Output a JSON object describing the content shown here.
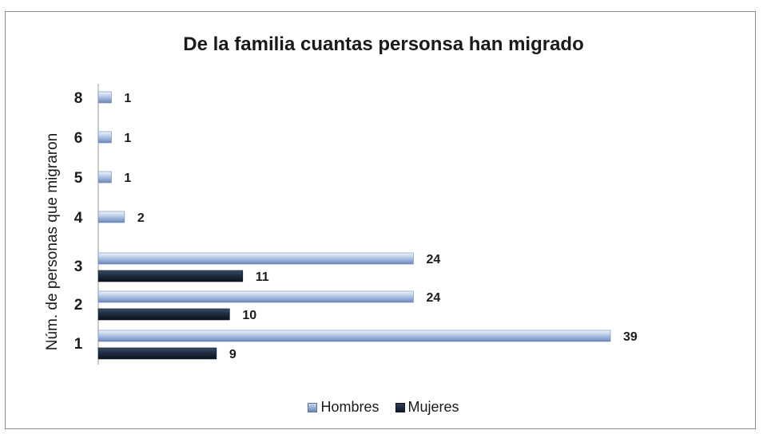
{
  "chart_data": {
    "type": "bar",
    "orientation": "horizontal",
    "title": "De la familia cuantas personsa han migrado",
    "xlabel": "",
    "ylabel": "Núm. de personas que migraron",
    "categories": [
      "1",
      "2",
      "3",
      "4",
      "5",
      "6",
      "8"
    ],
    "series": [
      {
        "name": "Hombres",
        "values": [
          39,
          24,
          24,
          2,
          1,
          1,
          1
        ],
        "color": "#8fa8d4"
      },
      {
        "name": "Mujeres",
        "values": [
          9,
          10,
          11,
          null,
          null,
          null,
          null
        ],
        "color": "#1c2a3c"
      }
    ],
    "xlim": [
      0,
      42
    ],
    "grid": false,
    "legend": "bottom",
    "data_labels": true
  }
}
